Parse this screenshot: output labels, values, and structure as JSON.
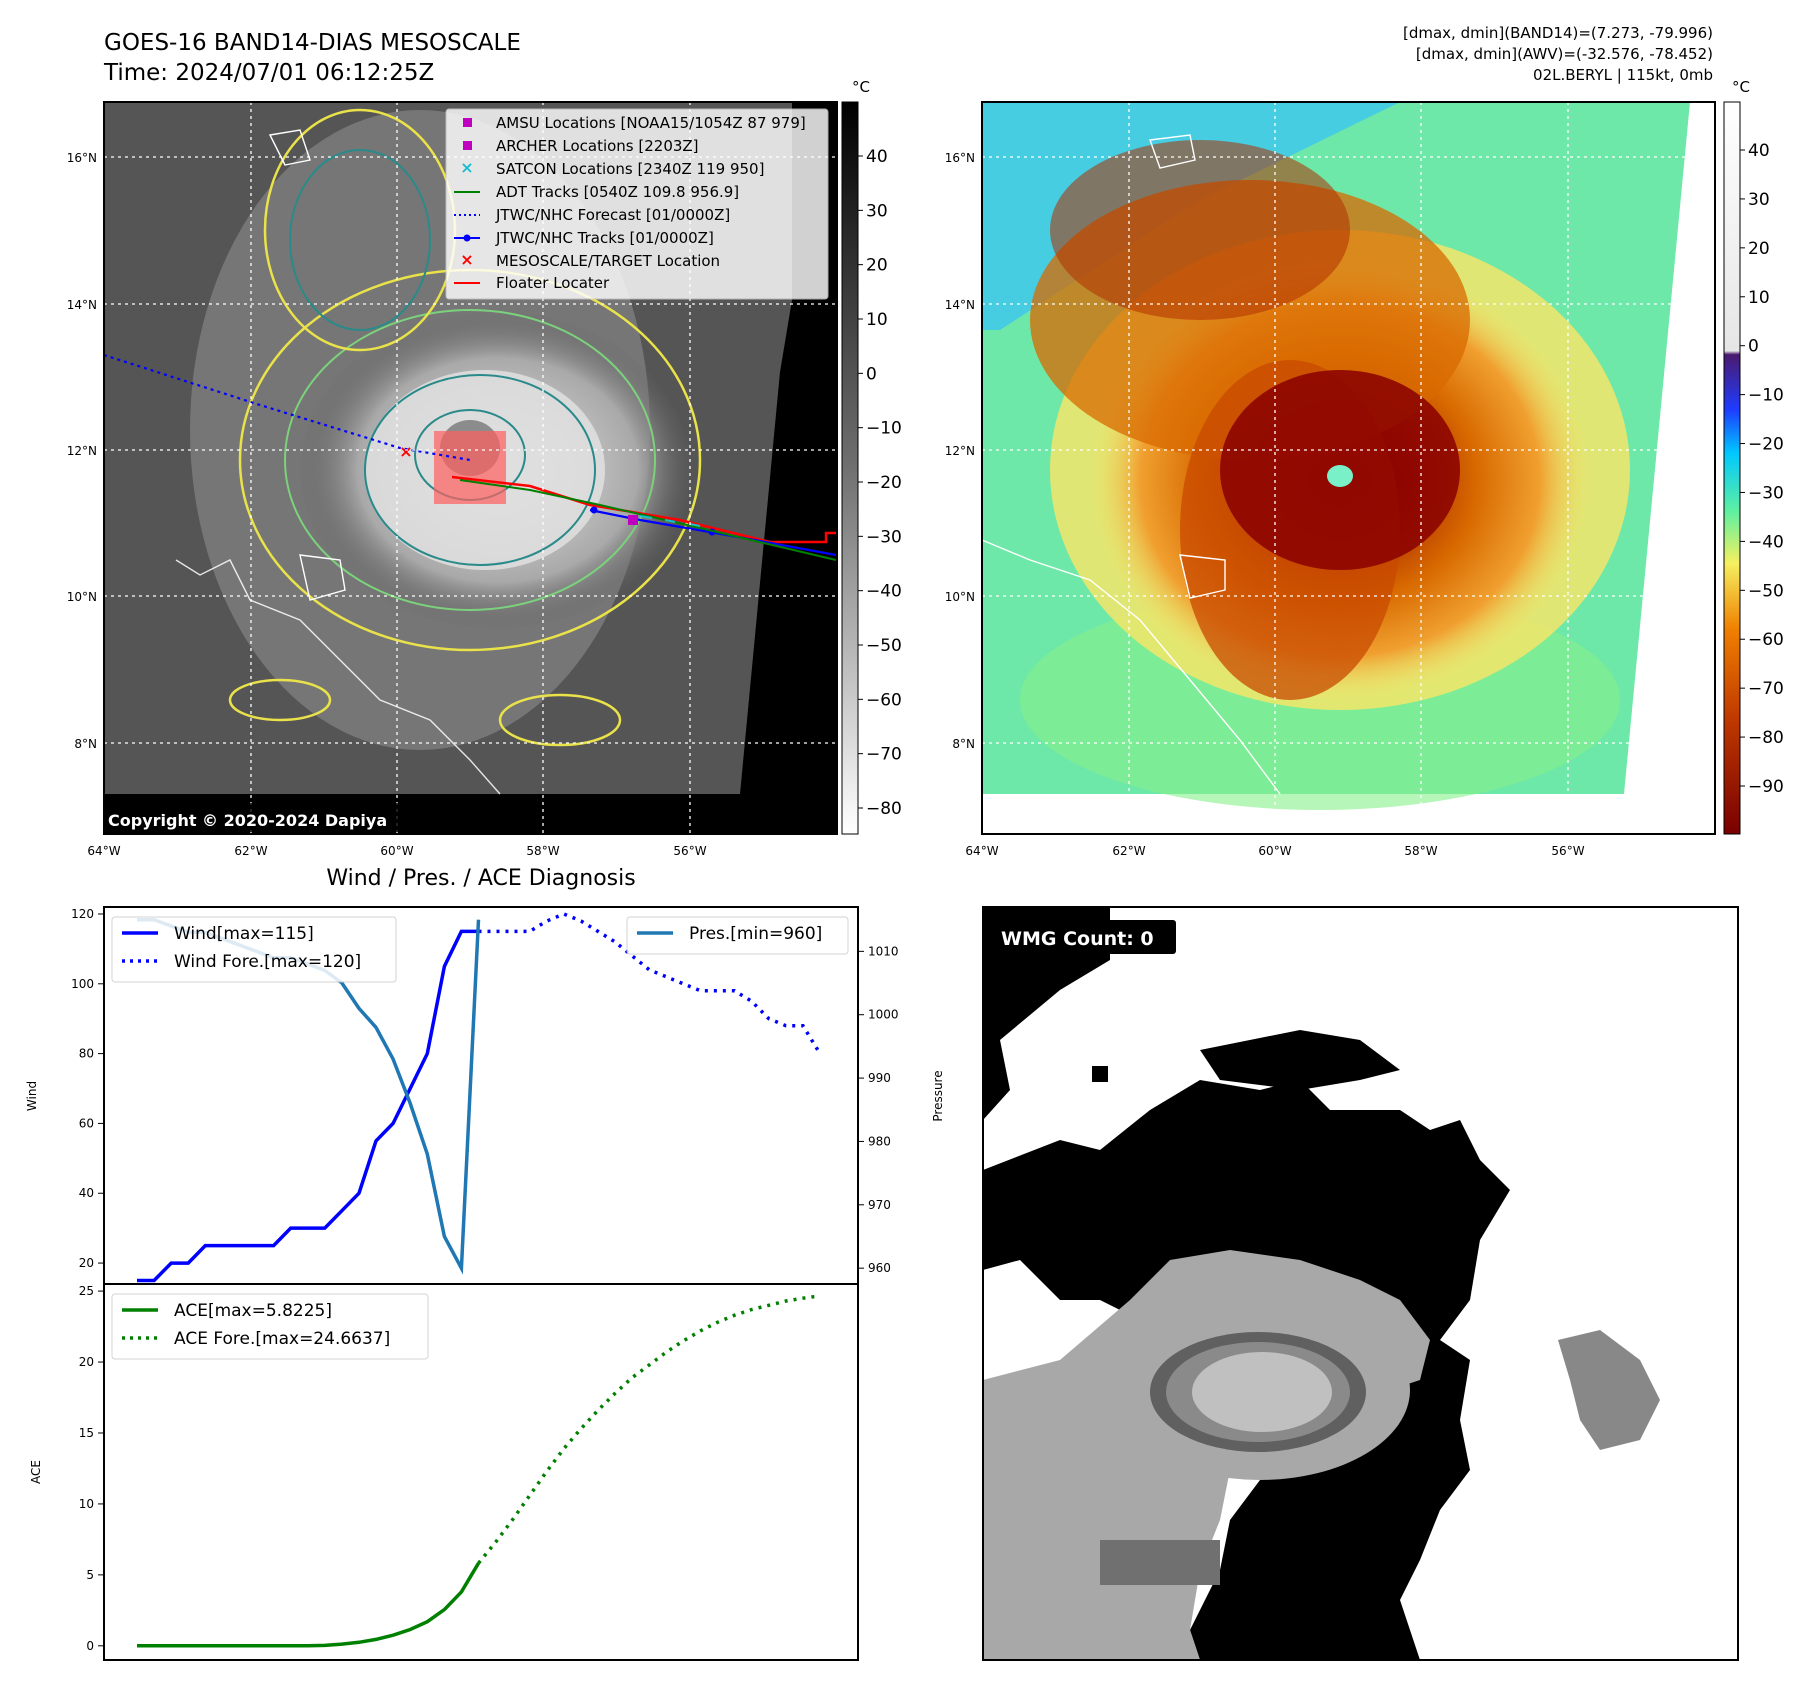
{
  "header": {
    "title_line1": "GOES-16 BAND14-DIAS MESOSCALE",
    "title_line2": "Time: 2024/07/01 06:12:25Z",
    "stats_line1": "[dmax, dmin](BAND14)=(7.273, -79.996)",
    "stats_line2": "[dmax, dmin](AWV)=(-32.576, -78.452)",
    "stats_line3": "02L.BERYL | 115kt, 0mb"
  },
  "map_axes": {
    "lon_labels": [
      "64°W",
      "62°W",
      "60°W",
      "58°W",
      "56°W"
    ],
    "lat_labels": [
      "16°N",
      "14°N",
      "12°N",
      "10°N",
      "8°N"
    ]
  },
  "legend_ir": {
    "items": [
      {
        "label": "AMSU Locations [NOAA15/1054Z 87 979]",
        "color": "#bf00bf",
        "marker": "square"
      },
      {
        "label": "ARCHER Locations [2203Z]",
        "color": "#bf00bf",
        "marker": "square"
      },
      {
        "label": "SATCON Locations [2340Z 119 950]",
        "color": "#17becf",
        "marker": "x"
      },
      {
        "label": "ADT Tracks [0540Z 109.8 956.9]",
        "color": "#008000",
        "marker": "line"
      },
      {
        "label": "JTWC/NHC Forecast [01/0000Z]",
        "color": "#0000ff",
        "marker": "dotted"
      },
      {
        "label": "JTWC/NHC Tracks [01/0000Z]",
        "color": "#0000ff",
        "marker": "line-dot"
      },
      {
        "label": "MESOSCALE/TARGET Location",
        "color": "#ff0000",
        "marker": "x"
      },
      {
        "label": "Floater Locater",
        "color": "#ff0000",
        "marker": "line"
      }
    ]
  },
  "copyright": "Copyright © 2020-2024 Dapiya",
  "colorbar_ir": {
    "unit": "°C",
    "ticks": [
      "40",
      "30",
      "20",
      "10",
      "0",
      "−10",
      "−20",
      "−30",
      "−40",
      "−50",
      "−60",
      "−70",
      "−80"
    ]
  },
  "colorbar_wv": {
    "unit": "°C",
    "ticks": [
      "40",
      "30",
      "20",
      "10",
      "0",
      "−10",
      "−20",
      "−30",
      "−40",
      "−50",
      "−60",
      "−70",
      "−80",
      "−90"
    ]
  },
  "diagnosis": {
    "title": "Wind / Pres. / ACE Diagnosis",
    "wind_ylabel": "Wind",
    "pres_ylabel": "Pressure",
    "ace_ylabel": "ACE",
    "wind_ticks": [
      "20",
      "40",
      "60",
      "80",
      "100",
      "120"
    ],
    "pres_ticks": [
      "960",
      "970",
      "980",
      "990",
      "1000",
      "1010"
    ],
    "ace_ticks": [
      "0",
      "5",
      "10",
      "15",
      "20",
      "25"
    ],
    "legend_wind": [
      "Wind[max=115]",
      "Wind Fore.[max=120]"
    ],
    "legend_pres": "Pres.[min=960]",
    "legend_ace": [
      "ACE[max=5.8225]",
      "ACE Fore.[max=24.6637]"
    ]
  },
  "wmg": {
    "label": "WMG Count: 0"
  },
  "chart_data": [
    {
      "type": "line",
      "title": "Wind / Pres. / ACE Diagnosis",
      "ylabel": "Wind",
      "y2label": "Pressure",
      "ylim": [
        14,
        122
      ],
      "y2lim": [
        957.5,
        1017
      ],
      "x": [
        0,
        1,
        2,
        3,
        4,
        5,
        6,
        7,
        8,
        9,
        10,
        11,
        12,
        13,
        14,
        15,
        16,
        17,
        18,
        19,
        20,
        21,
        22,
        23,
        24,
        25,
        26,
        27,
        28,
        29,
        30,
        31,
        32,
        33,
        34,
        35,
        36,
        37,
        38,
        39,
        40
      ],
      "series": [
        {
          "name": "Wind[max=115]",
          "axis": "left",
          "style": "solid",
          "color": "#0000ff",
          "x": [
            0,
            1,
            2,
            3,
            4,
            5,
            6,
            7,
            8,
            9,
            10,
            11,
            12,
            13,
            14,
            15,
            16,
            17,
            18,
            19,
            20
          ],
          "values": [
            15,
            15,
            20,
            20,
            25,
            25,
            25,
            25,
            25,
            30,
            30,
            30,
            35,
            40,
            55,
            60,
            70,
            80,
            105,
            115,
            115
          ]
        },
        {
          "name": "Wind Fore.[max=120]",
          "axis": "left",
          "style": "dotted",
          "color": "#0000ff",
          "x": [
            20,
            21,
            22,
            23,
            24,
            25,
            26,
            27,
            28,
            29,
            30,
            31,
            32,
            33,
            34,
            35,
            36,
            37,
            38,
            39,
            40
          ],
          "values": [
            115,
            115,
            115,
            115,
            118,
            120,
            118,
            115,
            112,
            108,
            104,
            102,
            100,
            98,
            98,
            98,
            95,
            90,
            88,
            88,
            80
          ]
        },
        {
          "name": "Pres.[min=960]",
          "axis": "right",
          "style": "solid",
          "color": "#1f77b4",
          "x": [
            0,
            1,
            2,
            3,
            4,
            5,
            6,
            7,
            8,
            9,
            10,
            11,
            12,
            13,
            14,
            15,
            16,
            17,
            18,
            19,
            20
          ],
          "values": [
            1015,
            1015,
            1014,
            1013,
            1013,
            1012,
            1011,
            1010,
            1009,
            1009,
            1008,
            1007,
            1005,
            1001,
            998,
            993,
            986,
            978,
            965,
            960,
            1015
          ]
        }
      ]
    },
    {
      "type": "line",
      "ylabel": "ACE",
      "ylim": [
        -1,
        25.5
      ],
      "x": [
        0,
        1,
        2,
        3,
        4,
        5,
        6,
        7,
        8,
        9,
        10,
        11,
        12,
        13,
        14,
        15,
        16,
        17,
        18,
        19,
        20,
        21,
        22,
        23,
        24,
        25,
        26,
        27,
        28,
        29,
        30,
        31,
        32,
        33,
        34,
        35,
        36,
        37,
        38,
        39,
        40
      ],
      "series": [
        {
          "name": "ACE[max=5.8225]",
          "style": "solid",
          "color": "#008000",
          "x": [
            0,
            1,
            2,
            3,
            4,
            5,
            6,
            7,
            8,
            9,
            10,
            11,
            12,
            13,
            14,
            15,
            16,
            17,
            18,
            19,
            20
          ],
          "values": [
            0,
            0,
            0,
            0,
            0,
            0,
            0,
            0,
            0,
            0,
            0,
            0.03,
            0.12,
            0.25,
            0.45,
            0.75,
            1.15,
            1.7,
            2.55,
            3.8,
            5.82
          ]
        },
        {
          "name": "ACE Fore.[max=24.6637]",
          "style": "dotted",
          "color": "#008000",
          "x": [
            20,
            21,
            22,
            23,
            24,
            25,
            26,
            27,
            28,
            29,
            30,
            31,
            32,
            33,
            34,
            35,
            36,
            37,
            38,
            39,
            40
          ],
          "values": [
            5.82,
            7.3,
            8.9,
            10.6,
            12.3,
            13.9,
            15.3,
            16.6,
            17.8,
            18.9,
            19.8,
            20.7,
            21.5,
            22.2,
            22.8,
            23.3,
            23.7,
            24.0,
            24.3,
            24.5,
            24.66
          ]
        }
      ]
    }
  ]
}
